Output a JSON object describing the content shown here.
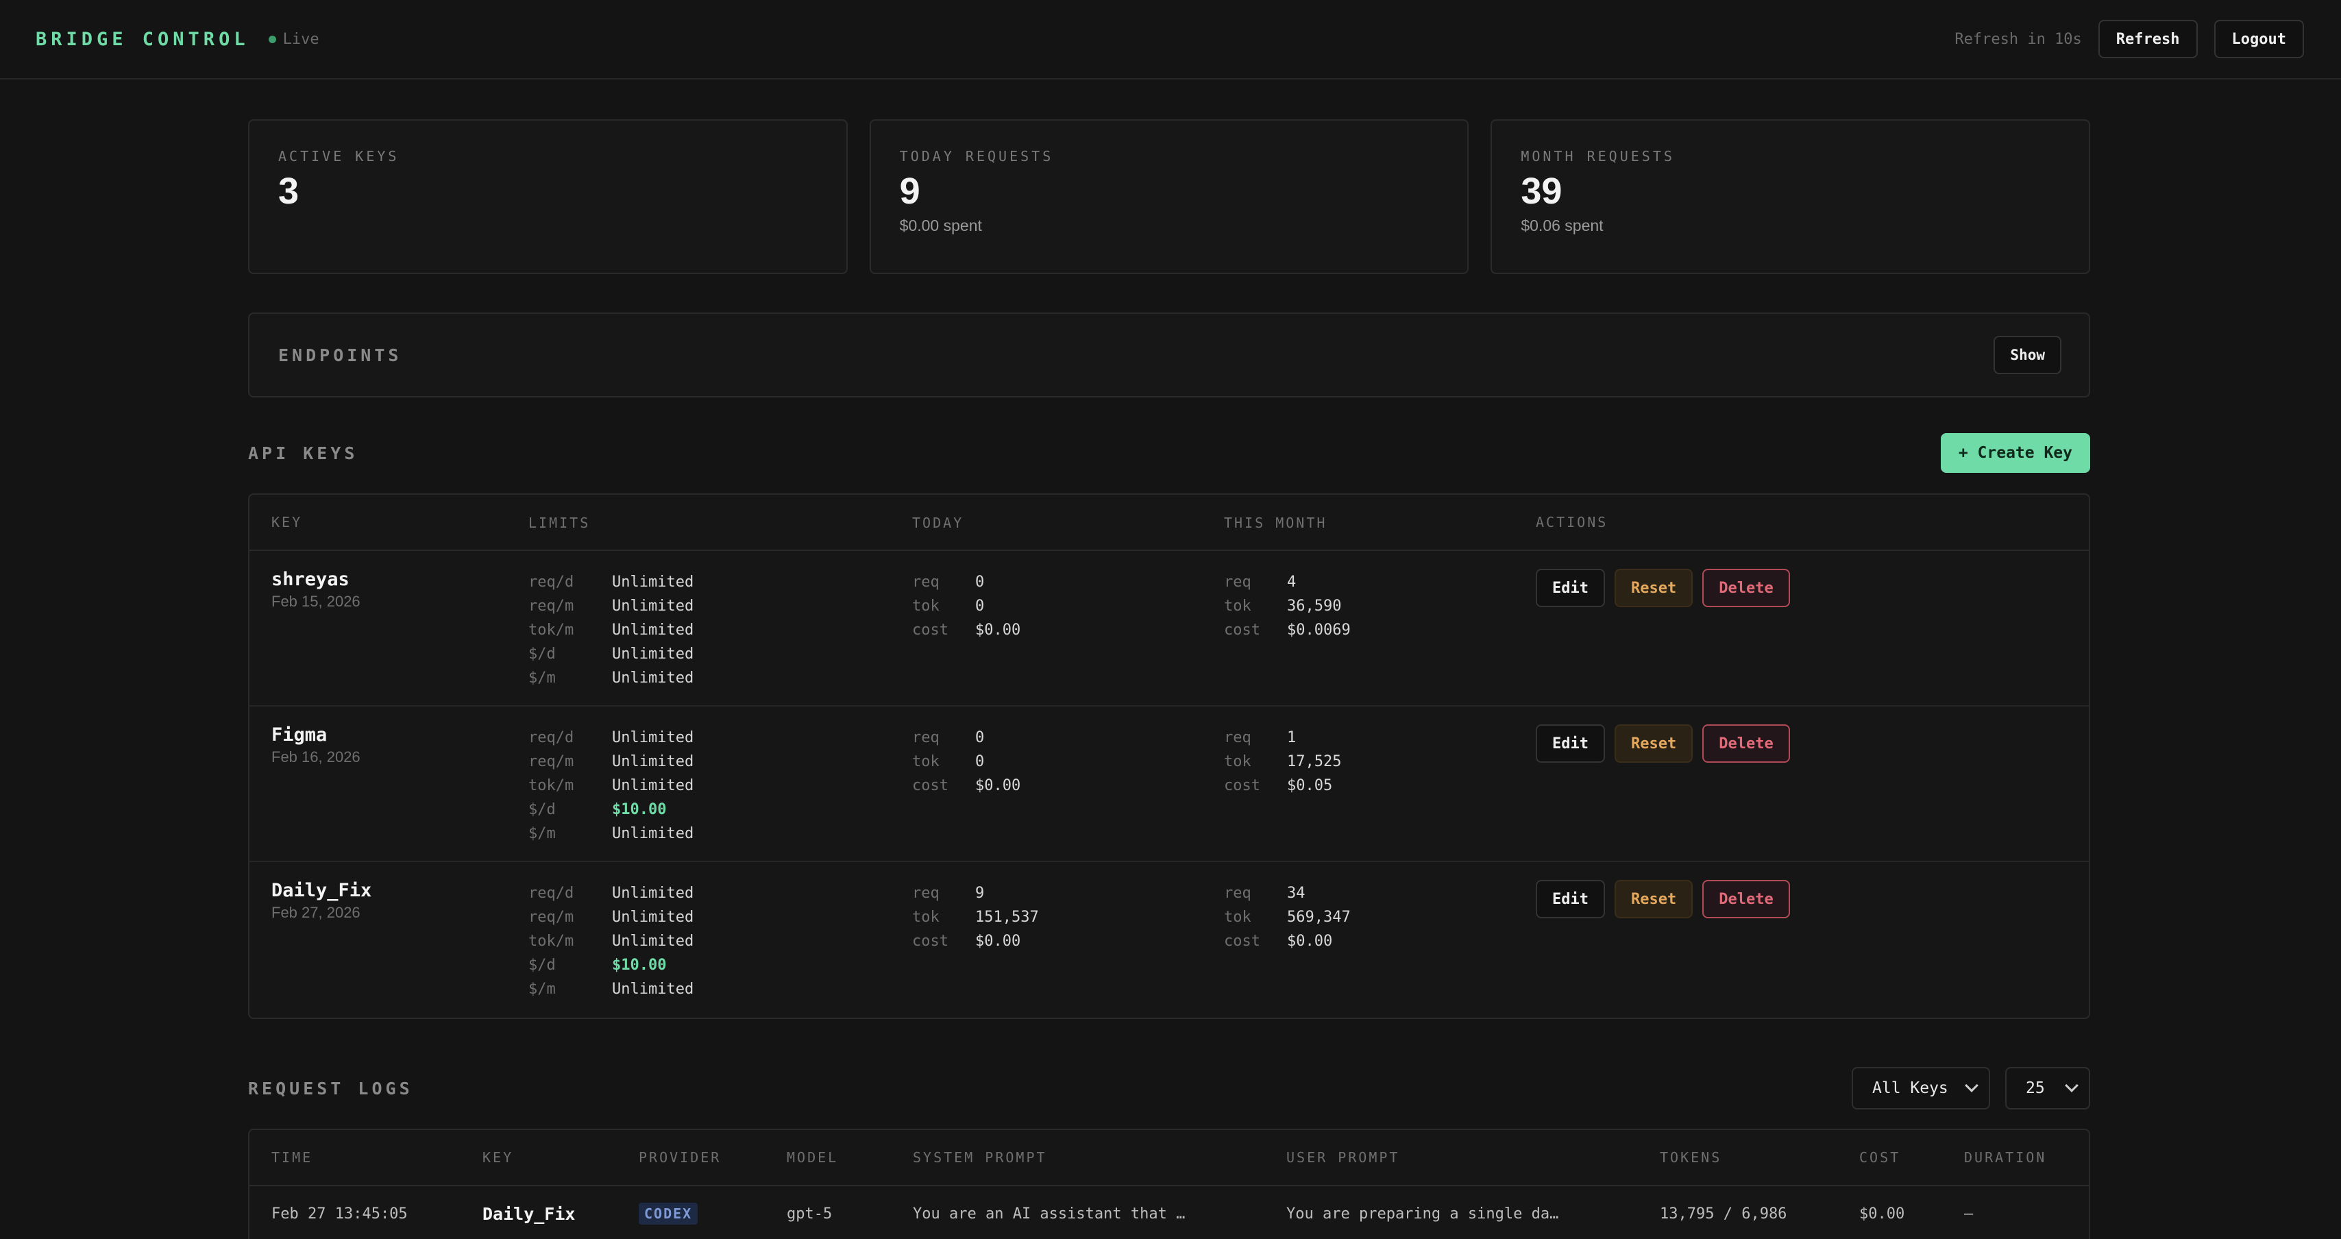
{
  "header": {
    "title": "BRIDGE CONTROL",
    "status": "Live",
    "refresh_countdown": "Refresh in 10s",
    "refresh_label": "Refresh",
    "logout_label": "Logout"
  },
  "stats": [
    {
      "label": "ACTIVE KEYS",
      "value": "3",
      "sub": ""
    },
    {
      "label": "TODAY REQUESTS",
      "value": "9",
      "sub": "$0.00 spent"
    },
    {
      "label": "MONTH REQUESTS",
      "value": "39",
      "sub": "$0.06 spent"
    }
  ],
  "endpoints": {
    "label": "ENDPOINTS",
    "toggle_label": "Show"
  },
  "api_keys": {
    "title": "API KEYS",
    "create_label": "+ Create Key",
    "columns": [
      "KEY",
      "LIMITS",
      "TODAY",
      "THIS MONTH",
      "ACTIONS"
    ],
    "actions": {
      "edit": "Edit",
      "reset": "Reset",
      "delete": "Delete"
    },
    "rows": [
      {
        "name": "shreyas",
        "date": "Feb 15, 2026",
        "limits": [
          [
            "req/d",
            "Unlimited"
          ],
          [
            "req/m",
            "Unlimited"
          ],
          [
            "tok/m",
            "Unlimited"
          ],
          [
            "$/d",
            "Unlimited"
          ],
          [
            "$/m",
            "Unlimited"
          ]
        ],
        "today": [
          [
            "req",
            "0"
          ],
          [
            "tok",
            "0"
          ],
          [
            "cost",
            "$0.00"
          ]
        ],
        "month": [
          [
            "req",
            "4"
          ],
          [
            "tok",
            "36,590"
          ],
          [
            "cost",
            "$0.0069"
          ]
        ]
      },
      {
        "name": "Figma",
        "date": "Feb 16, 2026",
        "limits": [
          [
            "req/d",
            "Unlimited"
          ],
          [
            "req/m",
            "Unlimited"
          ],
          [
            "tok/m",
            "Unlimited"
          ],
          [
            "$/d",
            "$10.00"
          ],
          [
            "$/m",
            "Unlimited"
          ]
        ],
        "today": [
          [
            "req",
            "0"
          ],
          [
            "tok",
            "0"
          ],
          [
            "cost",
            "$0.00"
          ]
        ],
        "month": [
          [
            "req",
            "1"
          ],
          [
            "tok",
            "17,525"
          ],
          [
            "cost",
            "$0.05"
          ]
        ]
      },
      {
        "name": "Daily_Fix",
        "date": "Feb 27, 2026",
        "limits": [
          [
            "req/d",
            "Unlimited"
          ],
          [
            "req/m",
            "Unlimited"
          ],
          [
            "tok/m",
            "Unlimited"
          ],
          [
            "$/d",
            "$10.00"
          ],
          [
            "$/m",
            "Unlimited"
          ]
        ],
        "today": [
          [
            "req",
            "9"
          ],
          [
            "tok",
            "151,537"
          ],
          [
            "cost",
            "$0.00"
          ]
        ],
        "month": [
          [
            "req",
            "34"
          ],
          [
            "tok",
            "569,347"
          ],
          [
            "cost",
            "$0.00"
          ]
        ]
      }
    ]
  },
  "logs": {
    "title": "REQUEST LOGS",
    "key_filter": "All Keys",
    "page_size": "25",
    "columns": [
      "TIME",
      "KEY",
      "PROVIDER",
      "MODEL",
      "SYSTEM PROMPT",
      "USER PROMPT",
      "TOKENS",
      "COST",
      "DURATION"
    ],
    "rows": [
      {
        "time": "Feb 27 13:45:05",
        "key": "Daily_Fix",
        "provider": "CODEX",
        "model": "gpt-5",
        "system": "You are an AI assistant that …",
        "user": "You are preparing a single da…",
        "tokens": "13,795 / 6,986",
        "cost": "$0.00",
        "duration": "—"
      }
    ]
  },
  "colors": {
    "accent": "#6fdca8",
    "reset": "#e3a85c",
    "delete": "#e06a78",
    "bg": "#141414"
  }
}
